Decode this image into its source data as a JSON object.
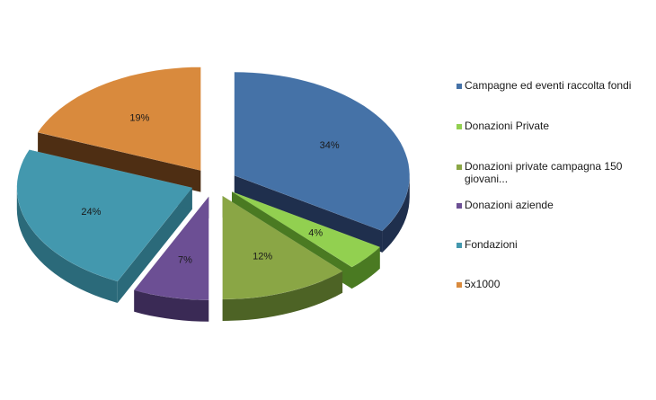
{
  "chart_data": {
    "type": "pie",
    "title": "",
    "style": "3d-exploded",
    "legend_position": "right",
    "categories": [
      "Campagne ed eventi raccolta fondi",
      "Donazioni Private",
      "Donazioni private campagna 150 giovani...",
      "Donazioni aziende",
      "Fondazioni",
      "5x1000"
    ],
    "values": [
      34,
      4,
      12,
      7,
      24,
      19
    ],
    "data_labels": [
      "34%",
      "4%",
      "12%",
      "7%",
      "24%",
      "19%"
    ],
    "colors": [
      "#4572a7",
      "#92d050",
      "#8aa645",
      "#6c4f94",
      "#4398ae",
      "#d98a3d"
    ],
    "side_colors": [
      "#1f2f4d",
      "#4a7a22",
      "#4d6325",
      "#3a2a55",
      "#2b6a7a",
      "#4e2e13"
    ]
  },
  "legend": {
    "items": [
      {
        "label": "Campagne ed eventi raccolta fondi",
        "color": "#4572a7"
      },
      {
        "label": "Donazioni Private",
        "color": "#92d050"
      },
      {
        "label": "Donazioni private campagna 150 giovani...",
        "color": "#8aa645"
      },
      {
        "label": "Donazioni aziende",
        "color": "#6c4f94"
      },
      {
        "label": "Fondazioni",
        "color": "#4398ae"
      },
      {
        "label": "5x1000",
        "color": "#d98a3d"
      }
    ]
  }
}
